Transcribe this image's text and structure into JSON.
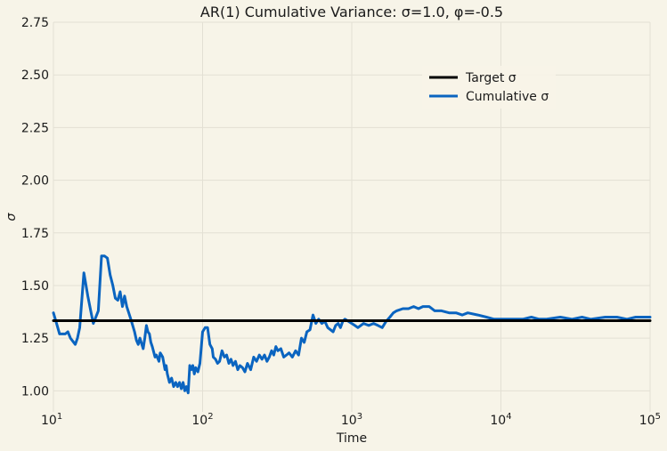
{
  "chart_data": {
    "type": "line",
    "title": "AR(1) Cumulative Variance: σ=1.0, φ=-0.5",
    "xlabel": "Time",
    "ylabel": "σ",
    "xscale": "log",
    "xlim": [
      10,
      100000
    ],
    "ylim": [
      0.9,
      2.75
    ],
    "yticks": [
      1.0,
      1.25,
      1.5,
      1.75,
      2.0,
      2.25,
      2.5,
      2.75
    ],
    "ytick_labels": [
      "1.00",
      "1.25",
      "1.50",
      "1.75",
      "2.00",
      "2.25",
      "2.50",
      "2.75"
    ],
    "xticks": [
      10,
      100,
      1000,
      10000,
      100000
    ],
    "xtick_labels": [
      {
        "base": "10",
        "exp": "1"
      },
      {
        "base": "10",
        "exp": "2"
      },
      {
        "base": "10",
        "exp": "3"
      },
      {
        "base": "10",
        "exp": "4"
      },
      {
        "base": "10",
        "exp": "5"
      }
    ],
    "grid": true,
    "legend_position": "upper-right",
    "colors": {
      "background": "#f7f4e8",
      "target": "#000000",
      "cumulative": "#0a64c0"
    },
    "series": [
      {
        "name": "Target σ",
        "x": [
          10,
          100000
        ],
        "y": [
          1.333,
          1.333
        ]
      },
      {
        "name": "Cumulative σ",
        "x": [
          10,
          10.5,
          11,
          12,
          12.5,
          13,
          14,
          14.5,
          15,
          16,
          17,
          18,
          18.5,
          19,
          20,
          21,
          22,
          23,
          24,
          25,
          26,
          27,
          28,
          29,
          30,
          31,
          32,
          33,
          35,
          36,
          37,
          38,
          40,
          41,
          42,
          43,
          44,
          45,
          46,
          48,
          49,
          51,
          52,
          54,
          56,
          57,
          58,
          60,
          62,
          64,
          66,
          68,
          70,
          72,
          74,
          76,
          78,
          80,
          82,
          84,
          86,
          88,
          90,
          93,
          96,
          100,
          104,
          108,
          112,
          116,
          118,
          122,
          126,
          130,
          135,
          140,
          145,
          150,
          155,
          160,
          166,
          172,
          178,
          185,
          192,
          200,
          210,
          220,
          230,
          240,
          250,
          260,
          270,
          280,
          290,
          300,
          310,
          320,
          335,
          350,
          365,
          380,
          400,
          420,
          440,
          460,
          480,
          500,
          525,
          550,
          575,
          600,
          630,
          660,
          690,
          720,
          750,
          780,
          810,
          840,
          870,
          900,
          950,
          1000,
          1050,
          1100,
          1150,
          1200,
          1300,
          1400,
          1500,
          1600,
          1700,
          1800,
          1900,
          2000,
          2200,
          2400,
          2600,
          2800,
          3000,
          3300,
          3600,
          4000,
          4500,
          5000,
          5500,
          6000,
          7000,
          8000,
          9000,
          10000,
          12000,
          14000,
          16000,
          18000,
          20000,
          25000,
          30000,
          35000,
          40000,
          50000,
          60000,
          70000,
          80000,
          90000,
          100000
        ],
        "y": [
          1.37,
          1.32,
          1.27,
          1.27,
          1.28,
          1.25,
          1.22,
          1.25,
          1.3,
          1.56,
          1.45,
          1.36,
          1.32,
          1.34,
          1.38,
          1.64,
          1.64,
          1.63,
          1.55,
          1.5,
          1.44,
          1.43,
          1.47,
          1.4,
          1.45,
          1.4,
          1.37,
          1.34,
          1.28,
          1.24,
          1.22,
          1.25,
          1.2,
          1.25,
          1.31,
          1.28,
          1.27,
          1.23,
          1.21,
          1.16,
          1.17,
          1.14,
          1.18,
          1.16,
          1.1,
          1.12,
          1.08,
          1.04,
          1.06,
          1.02,
          1.04,
          1.02,
          1.04,
          1.01,
          1.04,
          1.0,
          1.02,
          0.99,
          1.12,
          1.1,
          1.12,
          1.08,
          1.11,
          1.09,
          1.13,
          1.28,
          1.3,
          1.3,
          1.22,
          1.2,
          1.16,
          1.15,
          1.13,
          1.14,
          1.19,
          1.16,
          1.17,
          1.13,
          1.15,
          1.12,
          1.14,
          1.1,
          1.12,
          1.11,
          1.09,
          1.13,
          1.1,
          1.16,
          1.14,
          1.17,
          1.15,
          1.17,
          1.14,
          1.16,
          1.19,
          1.17,
          1.21,
          1.19,
          1.2,
          1.16,
          1.17,
          1.18,
          1.16,
          1.19,
          1.17,
          1.25,
          1.23,
          1.28,
          1.29,
          1.36,
          1.32,
          1.34,
          1.32,
          1.33,
          1.3,
          1.29,
          1.28,
          1.31,
          1.32,
          1.3,
          1.33,
          1.34,
          1.33,
          1.32,
          1.31,
          1.3,
          1.31,
          1.32,
          1.31,
          1.32,
          1.31,
          1.3,
          1.33,
          1.35,
          1.37,
          1.38,
          1.39,
          1.39,
          1.4,
          1.39,
          1.4,
          1.4,
          1.38,
          1.38,
          1.37,
          1.37,
          1.36,
          1.37,
          1.36,
          1.35,
          1.34,
          1.34,
          1.34,
          1.34,
          1.35,
          1.34,
          1.34,
          1.35,
          1.34,
          1.35,
          1.34,
          1.35,
          1.35,
          1.34,
          1.35,
          1.35,
          1.35
        ]
      }
    ]
  }
}
